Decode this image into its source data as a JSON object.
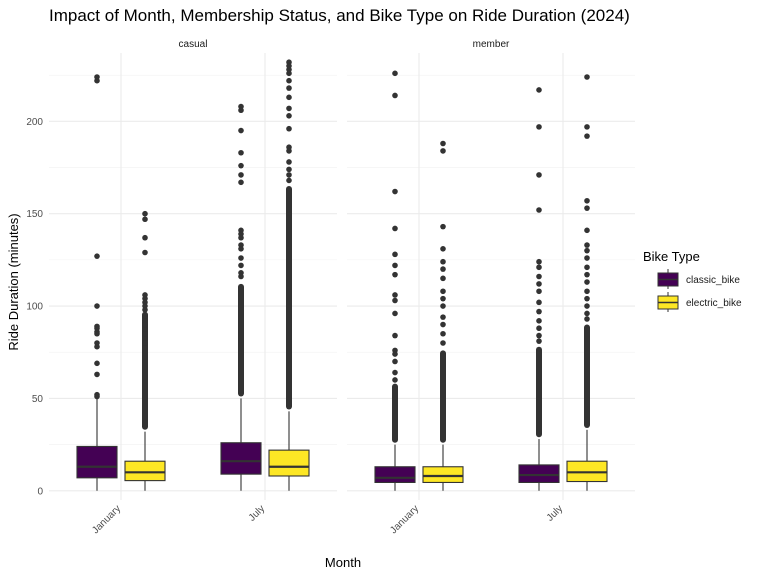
{
  "chart_data": {
    "type": "box",
    "title": "Impact of Month, Membership Status, and Bike Type on Ride Duration (2024)",
    "xlabel": "Month",
    "ylabel": "Ride Duration (minutes)",
    "ylim": [
      -5,
      237
    ],
    "y_ticks": [
      0,
      50,
      100,
      150,
      200
    ],
    "categories": [
      "January",
      "July"
    ],
    "facets": [
      "casual",
      "member"
    ],
    "legend": {
      "title": "Bike Type",
      "position": "right",
      "entries": [
        {
          "name": "classic_bike",
          "color": "#440154"
        },
        {
          "name": "electric_bike",
          "color": "#FDE725"
        }
      ]
    },
    "grid": true,
    "panels": [
      {
        "facet": "casual",
        "boxes": [
          {
            "month": "January",
            "bike": "classic_bike",
            "whisker_low": 0,
            "q1": 7,
            "median": 13,
            "q3": 24,
            "whisker_high": 50,
            "outliers": [
              222,
              224,
              127,
              100,
              89,
              88,
              86,
              85,
              80,
              78,
              69,
              63,
              52,
              51
            ],
            "dense": null
          },
          {
            "month": "January",
            "bike": "electric_bike",
            "whisker_low": 0,
            "q1": 5.5,
            "median": 10,
            "q3": 16,
            "whisker_high": 32,
            "outliers": [
              150,
              147,
              137,
              129,
              106,
              104,
              102,
              100,
              98,
              95,
              92,
              90,
              87,
              85,
              80
            ],
            "dense": [
              33,
              97
            ]
          },
          {
            "month": "July",
            "bike": "classic_bike",
            "whisker_low": 0,
            "q1": 9,
            "median": 16,
            "q3": 26,
            "whisker_high": 50,
            "outliers": [
              208,
              206,
              195,
              183,
              176,
              171,
              167,
              141,
              139,
              137,
              133,
              131,
              126,
              122,
              118,
              116
            ],
            "dense": [
              51,
              112
            ]
          },
          {
            "month": "July",
            "bike": "electric_bike",
            "whisker_low": 0,
            "q1": 8,
            "median": 13,
            "q3": 22,
            "whisker_high": 43,
            "outliers": [
              232,
              230,
              228,
              226,
              222,
              218,
              213,
              207,
              203,
              196,
              186,
              184,
              178,
              174,
              171,
              168
            ],
            "dense": [
              44,
              165
            ]
          }
        ]
      },
      {
        "facet": "member",
        "boxes": [
          {
            "month": "January",
            "bike": "classic_bike",
            "whisker_low": 0,
            "q1": 4.5,
            "median": 7,
            "q3": 13,
            "whisker_high": 25,
            "outliers": [
              226,
              214,
              162,
              142,
              128,
              122,
              117,
              106,
              103,
              96,
              84,
              76,
              74,
              70,
              64,
              60
            ],
            "dense": [
              26,
              58
            ]
          },
          {
            "month": "January",
            "bike": "electric_bike",
            "whisker_low": 0,
            "q1": 4.5,
            "median": 8,
            "q3": 13,
            "whisker_high": 25,
            "outliers": [
              188,
              184,
              143,
              131,
              124,
              120,
              115,
              108,
              104,
              100,
              94,
              90,
              85,
              80
            ],
            "dense": [
              26,
              76
            ]
          },
          {
            "month": "July",
            "bike": "classic_bike",
            "whisker_low": 0,
            "q1": 4.5,
            "median": 8.5,
            "q3": 14,
            "whisker_high": 28,
            "outliers": [
              217,
              197,
              171,
              152,
              124,
              121,
              116,
              112,
              108,
              102,
              97,
              92,
              88,
              84,
              81
            ],
            "dense": [
              29,
              78
            ]
          },
          {
            "month": "July",
            "bike": "electric_bike",
            "whisker_low": 0,
            "q1": 5,
            "median": 10,
            "q3": 16,
            "whisker_high": 33,
            "outliers": [
              224,
              197,
              192,
              157,
              153,
              141,
              133,
              130,
              126,
              121,
              117,
              113,
              108,
              104,
              100,
              96,
              93
            ],
            "dense": [
              34,
              90
            ]
          }
        ]
      }
    ]
  }
}
